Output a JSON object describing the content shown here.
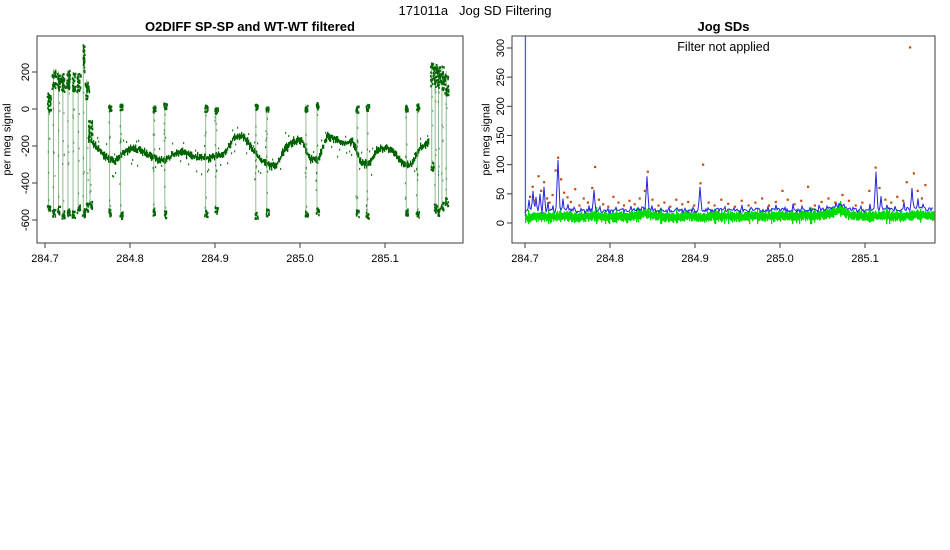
{
  "page": {
    "title": "171011a   Jog SD Filtering"
  },
  "colors": {
    "box": "#3c3c3c",
    "left_points": "#006400",
    "left_connector": "#74a874",
    "green_band": "#00dc00",
    "blue_line": "#2424dd",
    "vline": "#5555ee",
    "red_dots": "#c64a0e"
  },
  "chart_data": [
    {
      "type": "scatter",
      "title": "O2DIFF SP-SP and WT-WT filtered",
      "ylabel": "per meg signal",
      "xlabel": "",
      "xlim": [
        284.6906,
        285.1918
      ],
      "ylim": [
        -724,
        394
      ],
      "xtick_vals": [
        284.7,
        284.8,
        284.9,
        285.0,
        285.1
      ],
      "xtick_labels": [
        "284.7",
        "284.8",
        "284.9",
        "285.0",
        "285.1"
      ],
      "ytick_vals": [
        200,
        0,
        -200,
        -400,
        -600
      ],
      "ytick_labels": [
        "200",
        "0",
        "-200",
        "-400",
        "-600"
      ],
      "baseline": {
        "x_start": 284.751,
        "dx": 0.01,
        "values": [
          -160,
          -215,
          -258,
          -285,
          -240,
          -210,
          -222,
          -245,
          -270,
          -280,
          -240,
          -235,
          -250,
          -262,
          -268,
          -255,
          -235,
          -160,
          -138,
          -200,
          -260,
          -300,
          -310,
          -220,
          -175,
          -168,
          -270,
          -275,
          -145,
          -165,
          -190,
          -170,
          -290,
          -300,
          -215,
          -210,
          -240,
          -295,
          -300,
          -205,
          -180
        ]
      },
      "jogs": [
        [
          284.776,
          25,
          -575
        ],
        [
          284.789,
          32,
          -590
        ],
        [
          284.828,
          20,
          -570
        ],
        [
          284.841,
          38,
          -585
        ],
        [
          284.889,
          25,
          -580
        ],
        [
          284.901,
          15,
          -565
        ],
        [
          284.948,
          30,
          -590
        ],
        [
          284.961,
          20,
          -575
        ],
        [
          285.007,
          25,
          -585
        ],
        [
          285.02,
          38,
          -570
        ],
        [
          285.067,
          20,
          -580
        ],
        [
          285.079,
          30,
          -590
        ],
        [
          285.125,
          25,
          -575
        ],
        [
          285.138,
          32,
          -585
        ]
      ],
      "start_cluster": {
        "x": [
          284.704,
          284.71,
          284.716,
          284.721,
          284.727,
          284.733,
          284.739,
          284.745,
          284.749,
          284.753
        ],
        "top": [
          90,
          215,
          205,
          195,
          212,
          200,
          195,
          350,
          160,
          -60
        ],
        "bottom": [
          -560,
          -580,
          -565,
          -590,
          -575,
          -585,
          -560,
          -580,
          -550,
          -540
        ]
      },
      "end_cluster": {
        "x": [
          285.155,
          285.159,
          285.163,
          285.167,
          285.172
        ],
        "top": [
          255,
          248,
          232,
          238,
          205
        ],
        "bottom": [
          -330,
          -555,
          -575,
          -545,
          -520
        ]
      }
    },
    {
      "type": "line",
      "title": "Jog SDs",
      "annotation": "Filter not applied",
      "ylabel": "per meg signal",
      "xlabel": "",
      "xlim": [
        284.6847,
        285.1824
      ],
      "ylim": [
        -8,
        321
      ],
      "xtick_vals": [
        284.7,
        284.8,
        284.9,
        285.0,
        285.1
      ],
      "xtick_labels": [
        "284.7",
        "284.8",
        "284.9",
        "285.0",
        "285.1"
      ],
      "ytick_vals": [
        0,
        50,
        100,
        150,
        200,
        250,
        300
      ],
      "ytick_labels": [
        "0",
        "50",
        "100",
        "150",
        "200",
        "250",
        "300"
      ],
      "vline_x": 284.7005,
      "green_band": {
        "x_start": 284.7,
        "dx": 0.01,
        "center": [
          9,
          10,
          11,
          10,
          12,
          11,
          10,
          11,
          12,
          11,
          10,
          11,
          10,
          12,
          18,
          13,
          11,
          10,
          11,
          12,
          11,
          10,
          12,
          11,
          12,
          11,
          10,
          12,
          11,
          12,
          13,
          12,
          11,
          13,
          12,
          14,
          17,
          24,
          15,
          12,
          11,
          12,
          13,
          12,
          11,
          13,
          14,
          13,
          12
        ]
      },
      "blue_base": {
        "x_start": 284.7,
        "dx": 0.01,
        "values": [
          20,
          22,
          19,
          21,
          20,
          23,
          21,
          20,
          22,
          21,
          20,
          22,
          21,
          23,
          26,
          22,
          20,
          21,
          22,
          20,
          21,
          22,
          21,
          23,
          22,
          21,
          22,
          23,
          21,
          22,
          24,
          22,
          21,
          23,
          22,
          24,
          26,
          31,
          24,
          22,
          21,
          23,
          24,
          23,
          22,
          24,
          26,
          25,
          23
        ]
      },
      "blue_spikes": [
        [
          284.705,
          40
        ],
        [
          284.709,
          55
        ],
        [
          284.7135,
          45
        ],
        [
          284.718,
          50
        ],
        [
          284.7225,
          62
        ],
        [
          284.727,
          36
        ],
        [
          284.7335,
          30
        ],
        [
          284.739,
          108
        ],
        [
          284.7445,
          42
        ],
        [
          284.7505,
          32
        ],
        [
          284.7575,
          27
        ],
        [
          284.7655,
          25
        ],
        [
          284.7755,
          30
        ],
        [
          284.7815,
          57
        ],
        [
          284.7885,
          28
        ],
        [
          284.798,
          25
        ],
        [
          284.8065,
          27
        ],
        [
          284.8155,
          25
        ],
        [
          284.8245,
          29
        ],
        [
          284.8335,
          26
        ],
        [
          284.8435,
          80
        ],
        [
          284.8495,
          30
        ],
        [
          284.8595,
          25
        ],
        [
          284.8695,
          27
        ],
        [
          284.879,
          26
        ],
        [
          284.8885,
          25
        ],
        [
          284.8975,
          27
        ],
        [
          284.9055,
          62
        ],
        [
          284.9155,
          26
        ],
        [
          284.9255,
          25
        ],
        [
          284.9355,
          28
        ],
        [
          284.9455,
          26
        ],
        [
          284.9555,
          31
        ],
        [
          284.9655,
          27
        ],
        [
          284.9755,
          25
        ],
        [
          284.9855,
          29
        ],
        [
          284.9955,
          31
        ],
        [
          285.0055,
          27
        ],
        [
          285.0155,
          33
        ],
        [
          285.0255,
          29
        ],
        [
          285.0355,
          26
        ],
        [
          285.0455,
          31
        ],
        [
          285.0555,
          29
        ],
        [
          285.0655,
          36
        ],
        [
          285.0755,
          32
        ],
        [
          285.0855,
          27
        ],
        [
          285.0955,
          29
        ],
        [
          285.1055,
          33
        ],
        [
          285.1125,
          88
        ],
        [
          285.1185,
          46
        ],
        [
          285.1255,
          31
        ],
        [
          285.1355,
          29
        ],
        [
          285.1455,
          36
        ],
        [
          285.1555,
          60
        ],
        [
          285.162,
          42
        ],
        [
          285.168,
          32
        ]
      ],
      "red_dots": [
        [
          284.706,
          45
        ],
        [
          284.709,
          62
        ],
        [
          284.712,
          38
        ],
        [
          284.716,
          80
        ],
        [
          284.719,
          55
        ],
        [
          284.7225,
          70
        ],
        [
          284.726,
          42
        ],
        [
          284.729,
          35
        ],
        [
          284.7325,
          48
        ],
        [
          284.736,
          90
        ],
        [
          284.739,
          112
        ],
        [
          284.7425,
          75
        ],
        [
          284.746,
          52
        ],
        [
          284.75,
          44
        ],
        [
          284.754,
          36
        ],
        [
          284.759,
          58
        ],
        [
          284.764,
          30
        ],
        [
          284.769,
          42
        ],
        [
          284.774,
          35
        ],
        [
          284.779,
          60
        ],
        [
          284.7825,
          96
        ],
        [
          284.787,
          40
        ],
        [
          284.792,
          32
        ],
        [
          284.798,
          28
        ],
        [
          284.804,
          45
        ],
        [
          284.81,
          35
        ],
        [
          284.8165,
          30
        ],
        [
          284.823,
          38
        ],
        [
          284.829,
          32
        ],
        [
          284.835,
          42
        ],
        [
          284.841,
          55
        ],
        [
          284.8445,
          88
        ],
        [
          284.85,
          40
        ],
        [
          284.857,
          30
        ],
        [
          284.864,
          35
        ],
        [
          284.871,
          28
        ],
        [
          284.878,
          40
        ],
        [
          284.885,
          32
        ],
        [
          284.892,
          36
        ],
        [
          284.899,
          30
        ],
        [
          284.9065,
          68
        ],
        [
          284.9095,
          100
        ],
        [
          284.916,
          35
        ],
        [
          284.923,
          30
        ],
        [
          284.931,
          40
        ],
        [
          284.939,
          33
        ],
        [
          284.947,
          28
        ],
        [
          284.955,
          38
        ],
        [
          284.963,
          30
        ],
        [
          284.971,
          35
        ],
        [
          284.979,
          42
        ],
        [
          284.987,
          30
        ],
        [
          284.995,
          36
        ],
        [
          285.003,
          55
        ],
        [
          285.009,
          40
        ],
        [
          285.017,
          32
        ],
        [
          285.025,
          38
        ],
        [
          285.033,
          62
        ],
        [
          285.041,
          30
        ],
        [
          285.049,
          36
        ],
        [
          285.057,
          42
        ],
        [
          285.065,
          35
        ],
        [
          285.0735,
          48
        ],
        [
          285.081,
          38
        ],
        [
          285.089,
          30
        ],
        [
          285.097,
          35
        ],
        [
          285.105,
          55
        ],
        [
          285.1125,
          95
        ],
        [
          285.117,
          60
        ],
        [
          285.124,
          40
        ],
        [
          285.131,
          35
        ],
        [
          285.138,
          45
        ],
        [
          285.145,
          38
        ],
        [
          285.149,
          70
        ],
        [
          285.153,
          301
        ],
        [
          285.1575,
          85
        ],
        [
          285.162,
          55
        ],
        [
          285.167,
          42
        ],
        [
          285.171,
          65
        ]
      ]
    }
  ]
}
